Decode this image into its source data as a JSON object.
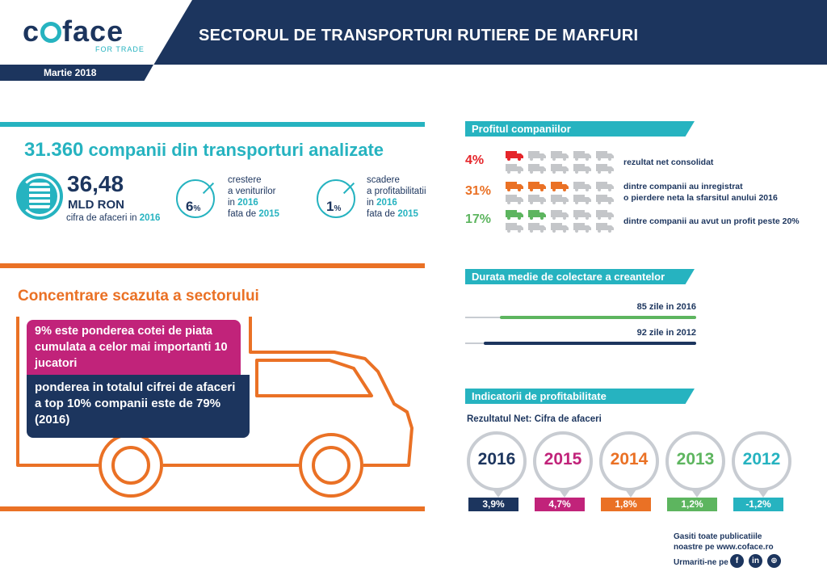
{
  "header": {
    "logo_text": "coface",
    "logo_tagline": "FOR TRADE",
    "title": "SECTORUL DE TRANSPORTURI RUTIERE DE MARFURI",
    "date": "Martie 2018"
  },
  "companies": {
    "count": "31.360",
    "count_label": "companii din transporturi analizate",
    "revenue_value": "36,48",
    "revenue_unit": "MLD RON",
    "revenue_desc": "cifra de afaceri in",
    "revenue_year": "2016",
    "growth": {
      "value": "6",
      "unit": "%",
      "line1": "crestere",
      "line2": "a veniturilor",
      "in_label": "in",
      "year1": "2016",
      "vs_label": "fata de",
      "year2": "2015"
    },
    "decline": {
      "value": "1",
      "unit": "%",
      "line1": "scadere",
      "line2": "a profitabilitatii",
      "in_label": "in",
      "year1": "2016",
      "vs_label": "fata de",
      "year2": "2015"
    }
  },
  "concentration": {
    "title": "Concentrare scazuta a sectorului",
    "box1": "9% este ponderea cotei de piata cumulata a celor mai importanti 10 jucatori",
    "box2": "ponderea in totalul cifrei de afaceri a top 10% companii este de 79% (2016)"
  },
  "profit": {
    "title": "Profitul companiilor",
    "rows": [
      {
        "pct": "4%",
        "color": "#e5262b",
        "highlight": 1,
        "label1": "rezultat net consolidat",
        "label2": ""
      },
      {
        "pct": "31%",
        "color": "#ea7125",
        "highlight": 3,
        "label1": "dintre companii au inregistrat",
        "label2": "o pierdere neta la sfarsitul anului 2016"
      },
      {
        "pct": "17%",
        "color": "#5db55f",
        "highlight": 2,
        "label1": "dintre companii au avut un profit peste 20%",
        "label2": ""
      }
    ]
  },
  "collection": {
    "title": "Durata medie de colectare a creantelor",
    "rows": [
      {
        "label": "85 zile in 2016",
        "days": 85,
        "color": "#5db55f"
      },
      {
        "label": "92 zile in 2012",
        "days": 92,
        "color": "#1c355e"
      }
    ]
  },
  "profitability": {
    "title": "Indicatorii de profitabilitate",
    "subtitle": "Rezultatul Net: Cifra de afaceri",
    "years": [
      {
        "year": "2016",
        "value": "3,9%",
        "color": "#1c355e"
      },
      {
        "year": "2015",
        "value": "4,7%",
        "color": "#c1237a"
      },
      {
        "year": "2014",
        "value": "1,8%",
        "color": "#ea7125"
      },
      {
        "year": "2013",
        "value": "1,2%",
        "color": "#5db55f"
      },
      {
        "year": "2012",
        "value": "-1,2%",
        "color": "#26b3c0"
      }
    ]
  },
  "footer": {
    "line1": "Gasiti toate publicatiile",
    "line2_prefix": "noastre pe",
    "website": "www.coface.ro",
    "follow": "Urmariti-ne pe",
    "social": [
      {
        "name": "facebook-icon",
        "glyph": "f"
      },
      {
        "name": "linkedin-icon",
        "glyph": "in"
      },
      {
        "name": "globe-icon",
        "glyph": "⊕"
      }
    ]
  }
}
